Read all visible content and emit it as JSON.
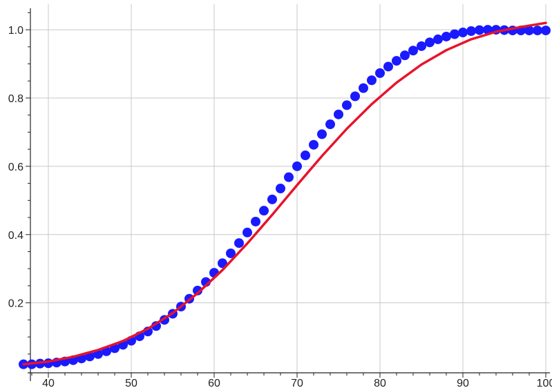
{
  "chart_data": {
    "type": "scatter",
    "title": "",
    "xlabel": "",
    "ylabel": "",
    "xlim": [
      36.5,
      100.5
    ],
    "ylim": [
      -0.005,
      1.075
    ],
    "x_ticks": [
      40,
      50,
      60,
      70,
      80,
      90,
      100
    ],
    "x_tick_labels": [
      "40",
      "50",
      "60",
      "70",
      "80",
      "90",
      "100"
    ],
    "y_ticks": [
      0.2,
      0.4,
      0.6,
      0.8,
      1.0
    ],
    "y_tick_labels": [
      "0.2",
      "0.4",
      "0.6",
      "0.8",
      "1.0"
    ],
    "grid": true,
    "legend": "none",
    "series": [
      {
        "kind": "points",
        "color": "#1a1aff",
        "x": [
          37,
          38,
          39,
          40,
          41,
          42,
          43,
          44,
          45,
          46,
          47,
          48,
          49,
          50,
          51,
          52,
          53,
          54,
          55,
          56,
          57,
          58,
          59,
          60,
          61,
          62,
          63,
          64,
          65,
          66,
          67,
          68,
          69,
          70,
          71,
          72,
          73,
          74,
          75,
          76,
          77,
          78,
          79,
          80,
          81,
          82,
          83,
          84,
          85,
          86,
          87,
          88,
          89,
          90,
          91,
          92,
          93,
          94,
          95,
          96,
          97,
          98,
          99,
          100
        ],
        "y": [
          0.02,
          0.02,
          0.022,
          0.023,
          0.025,
          0.028,
          0.032,
          0.037,
          0.043,
          0.05,
          0.058,
          0.067,
          0.077,
          0.089,
          0.102,
          0.116,
          0.132,
          0.15,
          0.168,
          0.189,
          0.212,
          0.236,
          0.261,
          0.288,
          0.316,
          0.345,
          0.375,
          0.406,
          0.438,
          0.47,
          0.503,
          0.535,
          0.568,
          0.6,
          0.632,
          0.663,
          0.694,
          0.723,
          0.752,
          0.779,
          0.805,
          0.829,
          0.852,
          0.873,
          0.892,
          0.909,
          0.925,
          0.939,
          0.952,
          0.963,
          0.972,
          0.98,
          0.987,
          0.992,
          0.996,
          0.999,
          1.0,
          1.0,
          0.999,
          0.998,
          0.998,
          0.998,
          0.998,
          0.998
        ]
      },
      {
        "kind": "line",
        "color": "#e8132a",
        "x": [
          37,
          40,
          43,
          46,
          49,
          52,
          55,
          58,
          61,
          64,
          67,
          70,
          73,
          76,
          79,
          82,
          85,
          88,
          91,
          94,
          97,
          100
        ],
        "y": [
          0.02,
          0.028,
          0.042,
          0.062,
          0.088,
          0.124,
          0.17,
          0.228,
          0.296,
          0.374,
          0.458,
          0.545,
          0.63,
          0.71,
          0.782,
          0.845,
          0.898,
          0.94,
          0.972,
          0.994,
          1.008,
          1.02
        ]
      }
    ]
  }
}
